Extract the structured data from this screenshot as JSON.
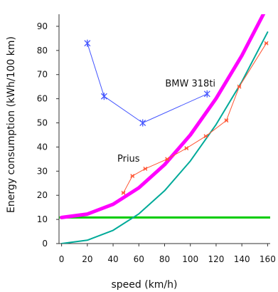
{
  "chart_data": {
    "type": "line",
    "xlabel": "speed (km/h)",
    "ylabel": "Energy consumption (kWh/100 km)",
    "xlim": [
      -2,
      162
    ],
    "ylim": [
      0,
      95
    ],
    "x_ticks": [
      0,
      20,
      40,
      60,
      80,
      100,
      120,
      140,
      160
    ],
    "y_ticks": [
      0,
      10,
      20,
      30,
      40,
      50,
      60,
      70,
      80,
      90
    ],
    "grid": false,
    "annotations": [
      {
        "text": "BMW 318ti",
        "x": 100,
        "y": 65
      },
      {
        "text": "Prius",
        "x": 52,
        "y": 34
      }
    ],
    "series": [
      {
        "color": "#00cc00",
        "x": [
          -2,
          162
        ],
        "y": [
          10.8,
          10.8
        ]
      },
      {
        "color": "#00aa99",
        "x": [
          0,
          20,
          40,
          60,
          80,
          100,
          120,
          140,
          160
        ],
        "y": [
          0,
          1.4,
          5.5,
          12.3,
          21.9,
          34.2,
          49.3,
          67.1,
          87.6
        ]
      },
      {
        "color": "#ff00ff",
        "x": [
          0,
          20,
          40,
          60,
          80,
          100,
          120,
          140,
          160
        ],
        "y": [
          10.8,
          12.2,
          16.3,
          23.1,
          32.7,
          45.0,
          60.1,
          77.9,
          98.4
        ]
      },
      {
        "color": "#4455ff",
        "x": [
          20,
          33,
          63,
          113
        ],
        "y": [
          83,
          61,
          50,
          62
        ]
      },
      {
        "color": "#ff5533",
        "x": [
          48,
          55,
          65,
          82,
          97,
          112,
          128,
          138,
          159
        ],
        "y": [
          21,
          28,
          31,
          35,
          39.5,
          44.5,
          51,
          65,
          83
        ]
      }
    ]
  }
}
